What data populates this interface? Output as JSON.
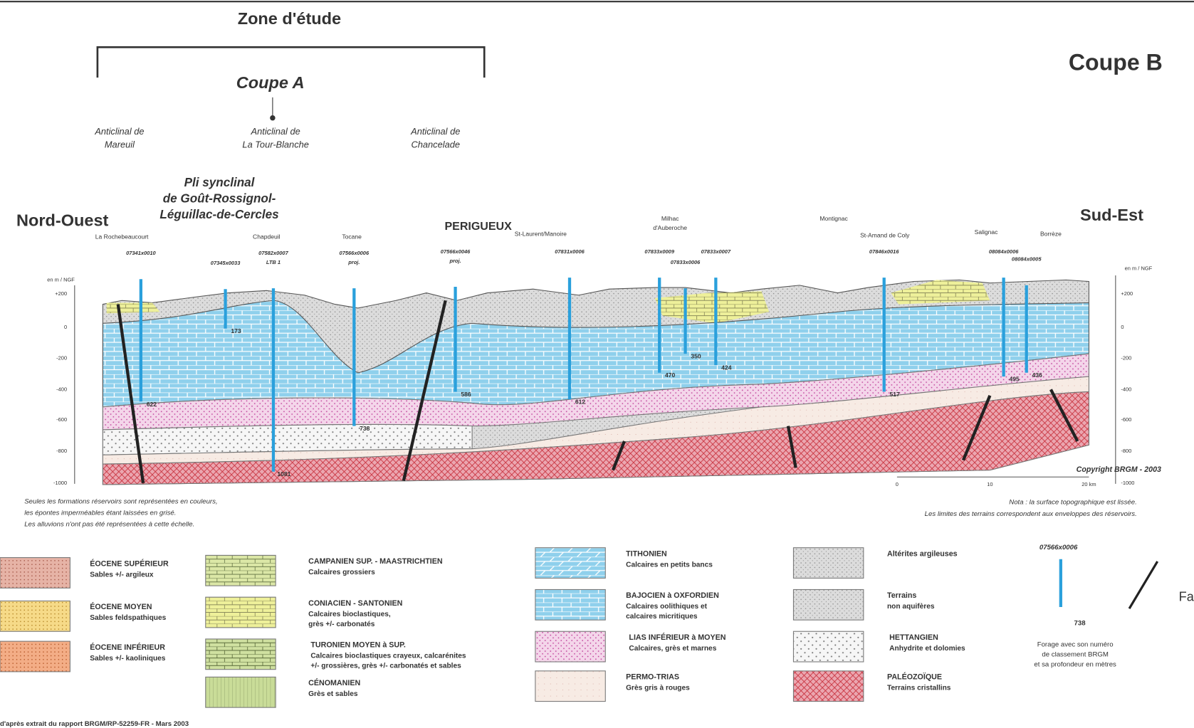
{
  "header": {
    "zone_title": "Zone d'étude",
    "coupe_a": "Coupe A",
    "coupe_b": "Coupe B"
  },
  "anticlines": [
    {
      "lines": [
        "Anticlinal de",
        "Mareuil"
      ]
    },
    {
      "lines": [
        "Anticlinal de",
        "La Tour-Blanche"
      ]
    },
    {
      "lines": [
        "Anticlinal de",
        "Chancelade"
      ]
    }
  ],
  "syncline": {
    "lines": [
      "Pli synclinal",
      "de Goût-Rossignol-",
      "Léguillac-de-Cercles"
    ]
  },
  "section": {
    "west": "Nord-Ouest",
    "east": "Sud-Est",
    "city": "PERIGUEUX",
    "places": [
      {
        "lines": [
          "La Rochebeaucourt"
        ]
      },
      {
        "lines": [
          "Chapdeuil"
        ]
      },
      {
        "lines": [
          "Tocane"
        ]
      },
      {
        "lines": [
          "St-Laurent/Manoire"
        ]
      },
      {
        "lines": [
          "Milhac",
          "d'Auberoche"
        ]
      },
      {
        "lines": [
          "Montignac"
        ]
      },
      {
        "lines": [
          "St-Amand de Coly"
        ]
      },
      {
        "lines": [
          "Salignac"
        ]
      },
      {
        "lines": [
          "Borrèze"
        ]
      }
    ],
    "wells": [
      {
        "id": [
          "07341x0010"
        ],
        "depth": "622"
      },
      {
        "id": [
          "07345x0033"
        ],
        "depth": "173"
      },
      {
        "id": [
          "07582x0007",
          "LTB 1"
        ],
        "depth": "1081"
      },
      {
        "id": [
          "07566x0006",
          "proj."
        ],
        "depth": "738"
      },
      {
        "id": [
          "07566x0046",
          "proj."
        ],
        "depth": "586"
      },
      {
        "id": [
          "07831x0006"
        ],
        "depth": "612"
      },
      {
        "id": [
          "07833x0009"
        ],
        "depth": "470"
      },
      {
        "id": [
          "07833x0006"
        ],
        "depth": "350"
      },
      {
        "id": [
          "07833x0007"
        ],
        "depth": "424"
      },
      {
        "id": [
          "07846x0016"
        ],
        "depth": "517"
      },
      {
        "id": [
          "08084x0006"
        ],
        "depth": "495"
      },
      {
        "id": [
          "08084x0005"
        ],
        "depth": "436"
      }
    ],
    "axis_unit": "en m / NGF",
    "axis_ticks": [
      "+200",
      "0",
      "-200",
      "-400",
      "-600",
      "-800",
      "-1000"
    ],
    "scale": [
      "0",
      "10",
      "20 km"
    ],
    "copyright": "Copyright BRGM - 2003",
    "notes_left": [
      "Seules les formations réservoirs sont représentées en couleurs,",
      "les épontes imperméables étant laissées en grisé.",
      "Les alluvions n'ont pas été représentées à cette échelle."
    ],
    "notes_right": [
      "Nota : la surface topographique est lissée.",
      "Les limites des terrains correspondent aux enveloppes des réservoirs."
    ]
  },
  "legend": {
    "items": [
      {
        "title": "ÉOCENE SUPÉRIEUR",
        "lines": [
          "Sables +/- argileux"
        ]
      },
      {
        "title": "ÉOCENE MOYEN",
        "lines": [
          "Sables feldspathiques"
        ]
      },
      {
        "title": "ÉOCENE INFÉRIEUR",
        "lines": [
          "Sables +/- kaoliniques"
        ]
      },
      {
        "title": "CAMPANIEN SUP. - MAASTRICHTIEN",
        "lines": [
          "Calcaires grossiers"
        ]
      },
      {
        "title": "CONIACIEN - SANTONIEN",
        "lines": [
          "Calcaires bioclastiques,",
          "grès +/- carbonatés"
        ]
      },
      {
        "title": "TURONIEN MOYEN à SUP.",
        "lines": [
          "Calcaires bioclastiques crayeux, calcarénites",
          "+/- grossières, grès +/- carbonatés et sables"
        ]
      },
      {
        "title": "CÉNOMANIEN",
        "lines": [
          "Grès et sables"
        ]
      },
      {
        "title": "TITHONIEN",
        "lines": [
          "Calcaires en petits bancs"
        ]
      },
      {
        "title": "BAJOCIEN à OXFORDIEN",
        "lines": [
          "Calcaires oolithiques et",
          "calcaires micritiques"
        ]
      },
      {
        "title": "LIAS INFÉRIEUR à MOYEN",
        "lines": [
          "Calcaires, grès et marnes"
        ]
      },
      {
        "title": "PERMO-TRIAS",
        "lines": [
          "Grès gris à rouges"
        ]
      },
      {
        "title": "Altérites argileuses",
        "lines": []
      },
      {
        "title": "Terrains",
        "lines": [
          "non aquifères"
        ]
      },
      {
        "title": "HETTANGIEN",
        "lines": [
          "Anhydrite et dolomies"
        ]
      },
      {
        "title": "PALÉOZOÏQUE",
        "lines": [
          "Terrains cristallins"
        ]
      }
    ],
    "borehole": {
      "id": "07566x0006",
      "depth": "738",
      "lines": [
        "Forage avec son numéro",
        "de classement BRGM",
        "et sa profondeur en mètres"
      ]
    },
    "fault": "Faille"
  },
  "source": "d'après extrait du rapport BRGM/RP-52259-FR - Mars 2003"
}
